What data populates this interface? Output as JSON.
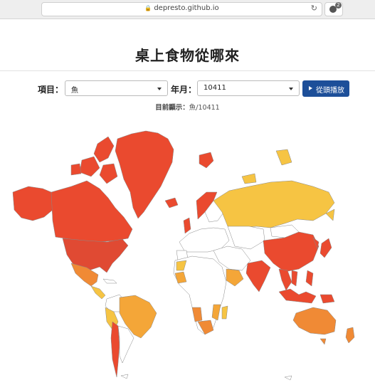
{
  "browser": {
    "url": "depresto.github.io",
    "extension_badge": "2"
  },
  "page": {
    "title": "桌上食物從哪來"
  },
  "controls": {
    "item_label": "項目：",
    "item_value": "魚",
    "month_label": "年月：",
    "month_value": "10411",
    "play_label": "從頭播放"
  },
  "status": {
    "label": "目前顯示：",
    "value": "魚/10411"
  },
  "legend_colors": {
    "highest": "#ea4a2f",
    "high": "#f08a35",
    "medium": "#f4a638",
    "low": "#f6c443",
    "lowest": "#f8dd78",
    "none": "#ffffff",
    "border": "#888888"
  }
}
